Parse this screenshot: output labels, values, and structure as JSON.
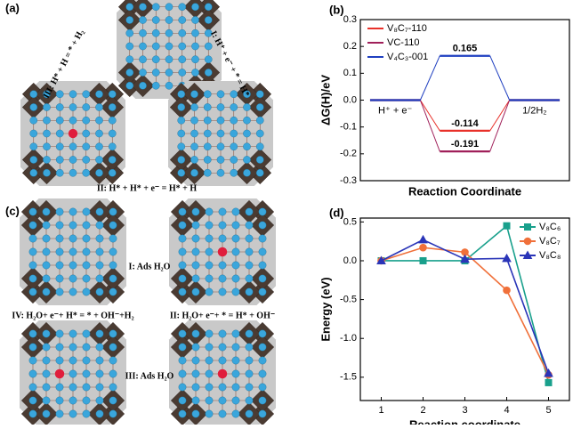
{
  "panel_a": {
    "label": "(a)",
    "step_1": "I: H⁺ + e⁻ + * = H*",
    "step_2": "II: H* + H* + e⁻ = H* + H",
    "step_3": "III: H* + H = * + H₂"
  },
  "panel_c": {
    "label": "(c)",
    "step_1": "I: Ads H₂O",
    "step_2": "II: H₂O+ e⁻+ * = H* + OH⁻",
    "step_3": "III: Ads H₂O",
    "step_4": "IV: H₂O+ e⁻+ H* = * + OH⁻+H₂"
  },
  "chart_data": [
    {
      "type": "energy",
      "label": "(b)",
      "ylabel": "ΔG(H)/eV",
      "xlabel": "Reaction Coordinate",
      "categories": [
        "H⁺ + e⁻",
        null,
        "1/2H₂"
      ],
      "series": [
        {
          "name": "V₈C₇-110",
          "color": "#e8312a",
          "values": [
            0,
            -0.114,
            0
          ]
        },
        {
          "name": "VC-110",
          "color": "#a0205a",
          "values": [
            0,
            -0.191,
            0
          ]
        },
        {
          "name": "V₄C₃-001",
          "color": "#1f3fc0",
          "values": [
            0,
            0.165,
            0
          ]
        }
      ],
      "ylim": [
        -0.3,
        0.3
      ],
      "yticks": [
        -0.3,
        -0.2,
        -0.1,
        {
          "value": 0,
          "label": "0.0"
        },
        0.1,
        0.2,
        0.3
      ],
      "legend": "top-left"
    },
    {
      "type": "line",
      "label": "(d)",
      "ylabel": "Energy (eV)",
      "xlabel": "Reaction coordinate",
      "x": [
        1,
        2,
        3,
        4,
        5
      ],
      "series": [
        {
          "name": "V₈C₆",
          "color": "#19a08c",
          "marker": "square",
          "values": [
            0,
            0,
            0,
            0.45,
            -1.57
          ]
        },
        {
          "name": "V₈C₇",
          "color": "#f0703a",
          "marker": "circle",
          "values": [
            0,
            0.17,
            0.11,
            -0.38,
            -1.47
          ]
        },
        {
          "name": "V₈C₈",
          "color": "#2a35b8",
          "marker": "triangle",
          "values": [
            0,
            0.27,
            0.02,
            0.03,
            -1.45
          ]
        }
      ],
      "xlim": [
        0.5,
        5.5
      ],
      "xticks": [
        1,
        2,
        3,
        4,
        5
      ],
      "ylim": [
        -1.8,
        0.55
      ],
      "yticks": [
        0.5,
        {
          "value": 0,
          "label": "0.0"
        },
        -0.5,
        {
          "value": -1,
          "label": "-1.0"
        },
        -1.5
      ],
      "legend": "top-right"
    }
  ]
}
